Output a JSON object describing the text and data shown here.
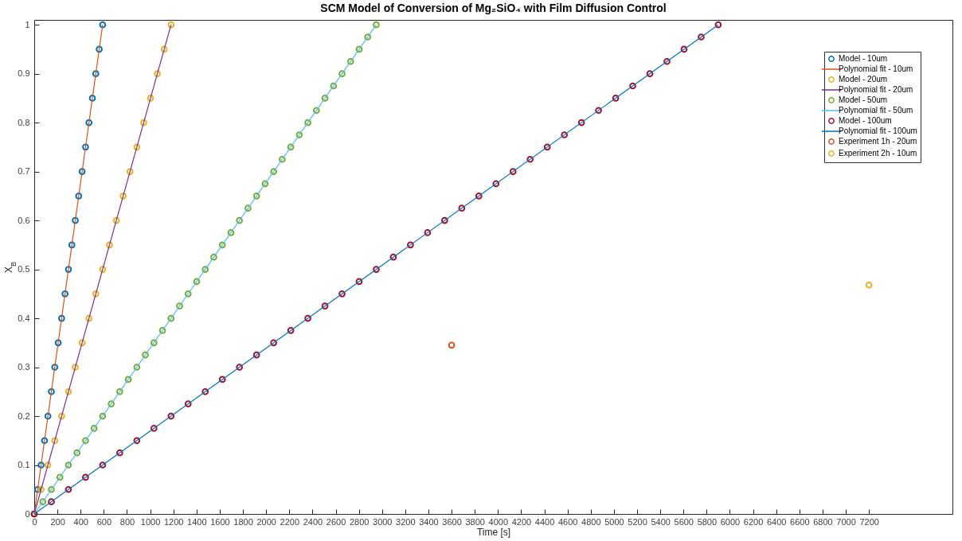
{
  "chart_data": {
    "type": "scatter",
    "title": "SCM Model of Conversion of Mg₂SiO₄ with Film Diffusion Control",
    "xlabel": "Time [s]",
    "ylabel": "X$_{B}$",
    "xlim": [
      0,
      7920
    ],
    "ylim": [
      0,
      1.01
    ],
    "xticks": [
      0,
      200,
      400,
      600,
      800,
      1000,
      1200,
      1400,
      1600,
      1800,
      2000,
      2200,
      2400,
      2600,
      2800,
      3000,
      3200,
      3400,
      3600,
      3800,
      4000,
      4200,
      4400,
      4600,
      4800,
      5000,
      5200,
      5400,
      5600,
      5800,
      6000,
      6200,
      6400,
      6600,
      6800,
      7000,
      7200
    ],
    "yticks": [
      0,
      0.1,
      0.2,
      0.3,
      0.4,
      0.5,
      0.6,
      0.7,
      0.8,
      0.9,
      1
    ],
    "grid": false,
    "legend": "top right",
    "marker": "circle",
    "series": [
      {
        "name": "Model - 10um",
        "type": "scatter",
        "color": "#0072bd",
        "x": [
          0,
          29.5,
          59,
          88.5,
          118,
          147.5,
          177,
          206.5,
          236,
          265.5,
          295,
          324.5,
          354,
          383.5,
          413,
          442.5,
          472,
          501.5,
          531,
          560.5,
          590
        ],
        "values": [
          0,
          0.05,
          0.1,
          0.15,
          0.2,
          0.25,
          0.3,
          0.35,
          0.4,
          0.45,
          0.5,
          0.55,
          0.6,
          0.65,
          0.7,
          0.75,
          0.8,
          0.85,
          0.9,
          0.95,
          1
        ]
      },
      {
        "name": "Polynomial fit - 10um",
        "type": "line",
        "marker": "none",
        "color": "#d95319",
        "x": [
          0,
          590
        ],
        "values": [
          0,
          1
        ]
      },
      {
        "name": "Model - 20um",
        "type": "scatter",
        "color": "#edb120",
        "x": [
          0,
          59,
          118,
          177,
          236,
          295,
          354,
          413,
          472,
          531,
          590,
          649,
          708,
          767,
          826,
          885,
          944,
          1003,
          1062,
          1121,
          1180
        ],
        "values": [
          0,
          0.05,
          0.1,
          0.15,
          0.2,
          0.25,
          0.3,
          0.35,
          0.4,
          0.45,
          0.5,
          0.55,
          0.6,
          0.65,
          0.7,
          0.75,
          0.8,
          0.85,
          0.9,
          0.95,
          1
        ]
      },
      {
        "name": "Polynomial fit - 20um",
        "type": "line",
        "marker": "none",
        "color": "#7e2f8e",
        "x": [
          0,
          1180
        ],
        "values": [
          0,
          1
        ]
      },
      {
        "name": "Model - 50um",
        "type": "scatter",
        "color": "#77ac30",
        "x": [
          0,
          73.75,
          147.5,
          221.25,
          295,
          368.75,
          442.5,
          516.25,
          590,
          663.75,
          737.5,
          811.25,
          885,
          958.75,
          1032.5,
          1106.25,
          1180,
          1253.75,
          1327.5,
          1401.25,
          1475,
          1548.75,
          1622.5,
          1696.25,
          1770,
          1843.75,
          1917.5,
          1991.25,
          2065,
          2138.75,
          2212.5,
          2286.25,
          2360,
          2433.75,
          2507.5,
          2581.25,
          2655,
          2728.75,
          2802.5,
          2876.25,
          2950
        ],
        "values": [
          0,
          0.025,
          0.05,
          0.075,
          0.1,
          0.125,
          0.15,
          0.175,
          0.2,
          0.225,
          0.25,
          0.275,
          0.3,
          0.325,
          0.35,
          0.375,
          0.4,
          0.425,
          0.45,
          0.475,
          0.5,
          0.525,
          0.55,
          0.575,
          0.6,
          0.625,
          0.65,
          0.675,
          0.7,
          0.725,
          0.75,
          0.775,
          0.8,
          0.825,
          0.85,
          0.875,
          0.9,
          0.925,
          0.95,
          0.975,
          1
        ]
      },
      {
        "name": "Polynomial fit - 50um",
        "type": "line",
        "marker": "none",
        "color": "#4dbeee",
        "x": [
          0,
          2950
        ],
        "values": [
          0,
          1
        ]
      },
      {
        "name": "Model - 100um",
        "type": "scatter",
        "color": "#a2142f",
        "x": [
          0,
          147.5,
          295,
          442.5,
          590,
          737.5,
          885,
          1032.5,
          1180,
          1327.5,
          1475,
          1622.5,
          1770,
          1917.5,
          2065,
          2212.5,
          2360,
          2507.5,
          2655,
          2802.5,
          2950,
          3097.5,
          3245,
          3392.5,
          3540,
          3687.5,
          3835,
          3982.5,
          4130,
          4277.5,
          4425,
          4572.5,
          4720,
          4867.5,
          5015,
          5162.5,
          5310,
          5457.5,
          5605,
          5752.5,
          5900
        ],
        "values": [
          0,
          0.025,
          0.05,
          0.075,
          0.1,
          0.125,
          0.15,
          0.175,
          0.2,
          0.225,
          0.25,
          0.275,
          0.3,
          0.325,
          0.35,
          0.375,
          0.4,
          0.425,
          0.45,
          0.475,
          0.5,
          0.525,
          0.55,
          0.575,
          0.6,
          0.625,
          0.65,
          0.675,
          0.7,
          0.725,
          0.75,
          0.775,
          0.8,
          0.825,
          0.85,
          0.875,
          0.9,
          0.925,
          0.95,
          0.975,
          1
        ]
      },
      {
        "name": "Polynomial fit - 100um",
        "type": "line",
        "marker": "none",
        "color": "#0072bd",
        "x": [
          0,
          5900
        ],
        "values": [
          0,
          1
        ]
      },
      {
        "name": "Experiment 1h - 20um",
        "type": "scatter",
        "color": "#d95319",
        "x": [
          3600
        ],
        "values": [
          0.345
        ]
      },
      {
        "name": "Experiment 2h - 10um",
        "type": "scatter",
        "color": "#edb120",
        "x": [
          7200
        ],
        "values": [
          0.468
        ]
      }
    ]
  }
}
